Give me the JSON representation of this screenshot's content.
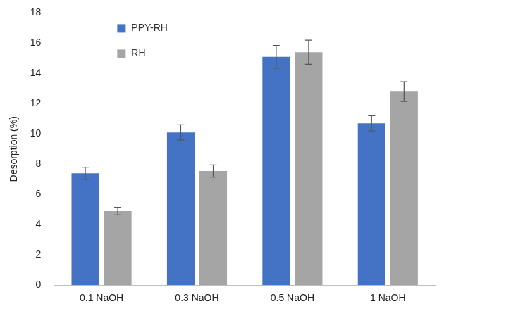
{
  "chart_data": {
    "type": "bar",
    "y_label": "Desorption (%)",
    "categories": [
      "0.1 NaOH",
      "0.3 NaOH",
      "0.5 NaOH",
      "1 NaOH"
    ],
    "series": [
      {
        "name": "PPY-RH",
        "color": "#4472c4",
        "values": [
          7.4,
          10.1,
          15.1,
          10.7
        ],
        "errors": [
          0.4,
          0.5,
          0.75,
          0.5
        ]
      },
      {
        "name": "RH",
        "color": "#a5a5a5",
        "values": [
          4.9,
          7.55,
          15.4,
          12.8
        ],
        "errors": [
          0.25,
          0.4,
          0.8,
          0.65
        ]
      }
    ],
    "ylim": [
      0,
      18
    ],
    "yticks": [
      0,
      2,
      4,
      6,
      8,
      10,
      12,
      14,
      16,
      18
    ],
    "grid": false,
    "legend": "upper left"
  }
}
